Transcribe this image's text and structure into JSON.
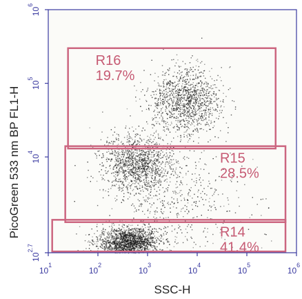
{
  "chart_data": {
    "type": "scatter",
    "xlabel": "SSC-H",
    "ylabel": "PicoGreen 533 nm BP FL1-H",
    "x_scale": "log",
    "y_scale": "log",
    "xlim": [
      10,
      1000000
    ],
    "ylim": [
      500,
      1000000
    ],
    "x_ticks": [
      {
        "base": "10",
        "exp": "1",
        "value": 10
      },
      {
        "base": "10",
        "exp": "2",
        "value": 100
      },
      {
        "base": "10",
        "exp": "3",
        "value": 1000
      },
      {
        "base": "10",
        "exp": "4",
        "value": 10000
      },
      {
        "base": "10",
        "exp": "5",
        "value": 100000
      },
      {
        "base": "10",
        "exp": "6",
        "value": 1000000
      }
    ],
    "y_ticks": [
      {
        "base": "10",
        "exp": "2.7",
        "value": 500
      },
      {
        "base": "10",
        "exp": "4",
        "value": 10000
      },
      {
        "base": "10",
        "exp": "5",
        "value": 100000
      },
      {
        "base": "10",
        "exp": "6",
        "value": 1000000
      }
    ],
    "gates": [
      {
        "name": "R16",
        "percent": "19.7%",
        "x_range": [
          25,
          380000
        ],
        "y_range": [
          13000,
          300000
        ]
      },
      {
        "name": "R15",
        "percent": "28.5%",
        "x_range": [
          22,
          600000
        ],
        "y_range": [
          1300,
          14000
        ]
      },
      {
        "name": "R14",
        "percent": "41.4%",
        "x_range": [
          12,
          600000
        ],
        "y_range": [
          520,
          1400
        ]
      }
    ],
    "clusters": [
      {
        "x_center": 400,
        "y_center": 700,
        "count": 1700,
        "x_spread": 0.3,
        "y_spread": 0.1
      },
      {
        "x_center": 600,
        "y_center": 8000,
        "count": 1200,
        "x_spread": 0.35,
        "y_spread": 0.2
      },
      {
        "x_center": 6000,
        "y_center": 60000,
        "count": 1200,
        "x_spread": 0.35,
        "y_spread": 0.22
      },
      {
        "x_center": 3000,
        "y_center": 3000,
        "count": 600,
        "x_spread": 0.7,
        "y_spread": 0.45
      }
    ],
    "colors": {
      "points": "#1a1a1a",
      "gate_border": "#cc6680",
      "gate_text": "#c65a73",
      "tick_text": "#3a3aa0",
      "axis": "#3a3aa0"
    }
  }
}
